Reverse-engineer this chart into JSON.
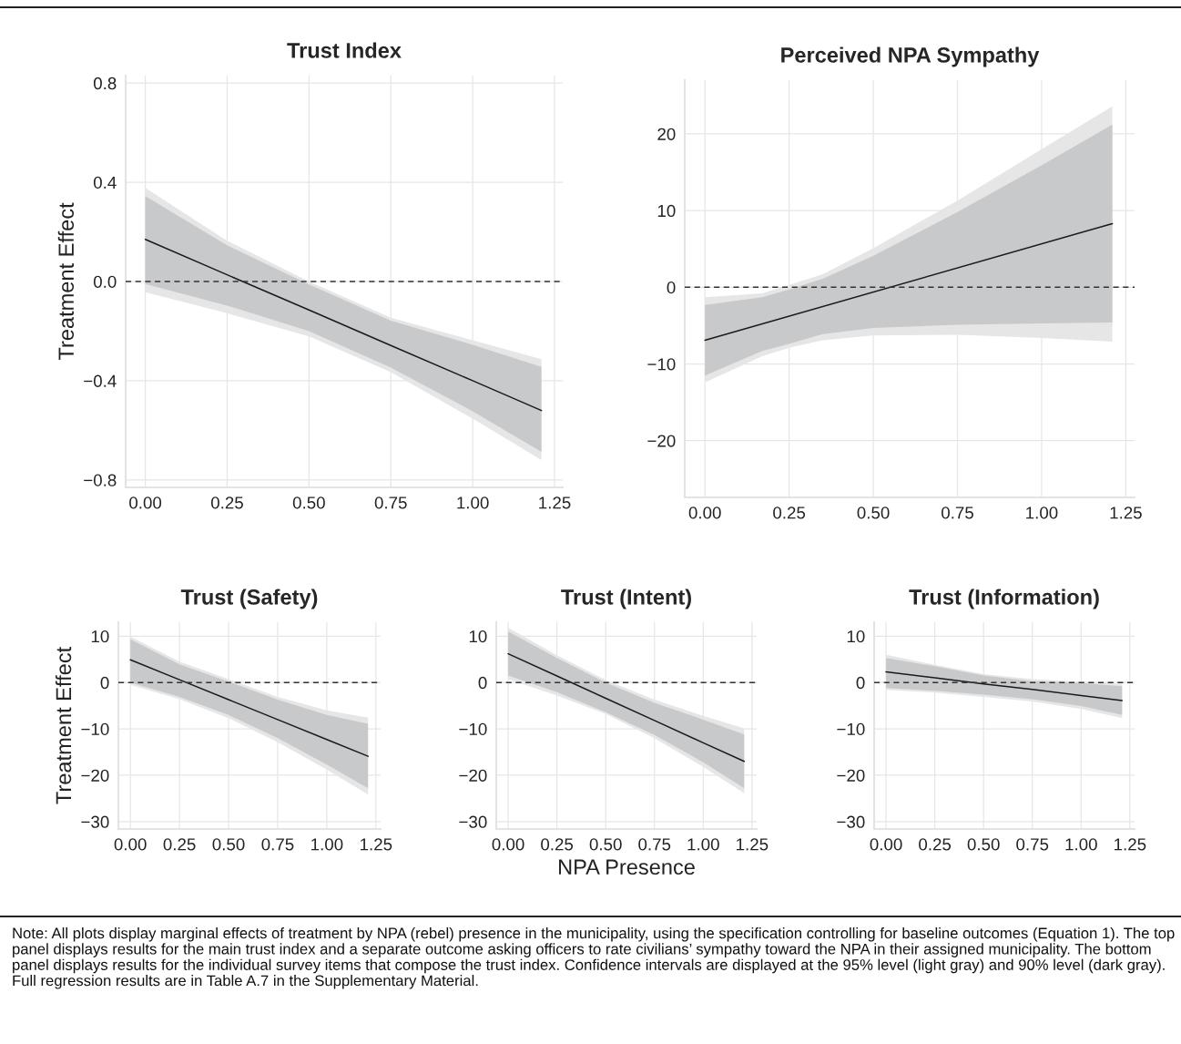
{
  "chart_data": [
    {
      "type": "line",
      "title": "Trust Index",
      "ylabel": "Treatment Effect",
      "x": [
        0,
        0.25,
        0.5,
        0.75,
        1.0,
        1.21
      ],
      "xlim": [
        -0.06,
        1.275
      ],
      "ylim": [
        -0.83,
        0.83
      ],
      "xticks": [
        {
          "value": 0,
          "label": "0.00"
        },
        0.25,
        {
          "value": 0.5,
          "label": "0.50"
        },
        0.75,
        {
          "value": 1,
          "label": "1.00"
        },
        1.25
      ],
      "yticks": [
        {
          "value": -0.8,
          "label": "−0.8"
        },
        {
          "value": -0.4,
          "label": "−0.4"
        },
        {
          "value": 0,
          "label": "0.0"
        },
        0.4,
        0.8
      ],
      "grid": true,
      "ref_lines": [
        {
          "axis": "y",
          "value": 0,
          "line_style": "dashed",
          "color": "#333333"
        }
      ],
      "series": [
        {
          "color": "#e6e6e6",
          "values": [
            null,
            null,
            null,
            null,
            null,
            null
          ],
          "lower": [
            -0.043,
            -0.128,
            -0.221,
            -0.365,
            -0.553,
            -0.72
          ],
          "upper": [
            0.377,
            0.164,
            0.0,
            -0.146,
            -0.237,
            -0.313
          ]
        },
        {
          "color": "#c8c9cb",
          "values": [
            null,
            null,
            null,
            null,
            null,
            null
          ],
          "lower": [
            -0.01,
            -0.097,
            -0.2,
            -0.347,
            -0.523,
            -0.687
          ],
          "upper": [
            0.344,
            0.146,
            -0.012,
            -0.158,
            -0.255,
            -0.344
          ]
        },
        {
          "color": "#1a1a1a",
          "values": [
            0.17,
            0.027,
            -0.115,
            -0.258,
            -0.4,
            -0.52
          ]
        }
      ]
    },
    {
      "type": "line",
      "title": "Perceived NPA Sympathy",
      "x": [
        0,
        0.17,
        0.25,
        0.35,
        0.5,
        0.75,
        1.0,
        1.21
      ],
      "xlim": [
        -0.06,
        1.276
      ],
      "ylim": [
        -27.4,
        27
      ],
      "xticks": [
        {
          "value": 0,
          "label": "0.00"
        },
        0.25,
        {
          "value": 0.5,
          "label": "0.50"
        },
        0.75,
        {
          "value": 1,
          "label": "1.00"
        },
        1.25
      ],
      "yticks": [
        {
          "value": -20,
          "label": "−20"
        },
        {
          "value": -10,
          "label": "−10"
        },
        0,
        10,
        20
      ],
      "grid": true,
      "ref_lines": [
        {
          "axis": "y",
          "value": 0,
          "line_style": "dashed",
          "color": "#333333"
        }
      ],
      "series": [
        {
          "color": "#e6e6e6",
          "values": [
            null,
            null,
            null,
            null,
            null,
            null,
            null,
            null
          ],
          "lower": [
            -12.4,
            -9.0,
            -7.9,
            -6.9,
            -6.3,
            -6.2,
            -6.6,
            -7.1
          ],
          "upper": [
            -1.3,
            -0.8,
            0.3,
            1.7,
            5.1,
            11.3,
            18.0,
            23.6
          ]
        },
        {
          "color": "#c8c9cb",
          "values": [
            null,
            null,
            null,
            null,
            null,
            null,
            null,
            null
          ],
          "lower": [
            -11.5,
            -8.3,
            -7.4,
            -6.1,
            -5.3,
            -4.9,
            -4.7,
            -4.6
          ],
          "upper": [
            -2.3,
            -1.3,
            -0.3,
            1.1,
            4.1,
            9.8,
            15.9,
            21.2
          ]
        },
        {
          "color": "#1a1a1a",
          "x": [
            0,
            1.21
          ],
          "values": [
            -6.9,
            8.3
          ]
        }
      ]
    },
    {
      "type": "line",
      "title": "Trust (Safety)",
      "ylabel": "Treatment Effect",
      "x": [
        0,
        0.25,
        0.5,
        0.75,
        1.0,
        1.21
      ],
      "xlim": [
        -0.061,
        1.274
      ],
      "ylim": [
        -31.6,
        13
      ],
      "xticks": [
        {
          "value": 0,
          "label": "0.00"
        },
        0.25,
        {
          "value": 0.5,
          "label": "0.50"
        },
        0.75,
        {
          "value": 1,
          "label": "1.00"
        },
        1.25
      ],
      "yticks": [
        {
          "value": -30,
          "label": "−30"
        },
        {
          "value": -20,
          "label": "−20"
        },
        {
          "value": -10,
          "label": "−10"
        },
        0,
        10
      ],
      "grid": true,
      "ref_lines": [
        {
          "axis": "y",
          "value": 0,
          "line_style": "dashed",
          "color": "#333333"
        }
      ],
      "series": [
        {
          "color": "#e6e6e6",
          "values": [
            null,
            null,
            null,
            null,
            null,
            null
          ],
          "lower": [
            -0.5,
            -3.6,
            -7.7,
            -12.9,
            -18.8,
            -24.2
          ],
          "upper": [
            9.9,
            4.5,
            0.7,
            -3.1,
            -6.0,
            -7.6
          ]
        },
        {
          "color": "#c8c9cb",
          "values": [
            null,
            null,
            null,
            null,
            null,
            null
          ],
          "lower": [
            0,
            -3.1,
            -7.0,
            -12.0,
            -17.7,
            -22.8
          ],
          "upper": [
            9.3,
            3.9,
            0.2,
            -3.7,
            -7.0,
            -8.9
          ]
        },
        {
          "color": "#1a1a1a",
          "values": [
            4.9,
            0.6,
            -3.7,
            -8.0,
            -12.3,
            -15.9
          ]
        }
      ]
    },
    {
      "type": "line",
      "title": "Trust (Intent)",
      "xlabel": "NPA Presence",
      "x": [
        0,
        0.25,
        0.5,
        0.75,
        1.0,
        1.21
      ],
      "xlim": [
        -0.061,
        1.274
      ],
      "ylim": [
        -31.6,
        13
      ],
      "xticks": [
        {
          "value": 0,
          "label": "0.00"
        },
        0.25,
        {
          "value": 0.5,
          "label": "0.50"
        },
        0.75,
        {
          "value": 1,
          "label": "1.00"
        },
        1.25
      ],
      "yticks": [
        {
          "value": -30,
          "label": "−30"
        },
        {
          "value": -20,
          "label": "−20"
        },
        {
          "value": -10,
          "label": "−10"
        },
        0,
        10
      ],
      "grid": true,
      "ref_lines": [
        {
          "axis": "y",
          "value": 0,
          "line_style": "dashed",
          "color": "#333333"
        }
      ],
      "series": [
        {
          "color": "#e6e6e6",
          "values": [
            null,
            null,
            null,
            null,
            null,
            null
          ],
          "lower": [
            0.7,
            -2.8,
            -6.8,
            -12.0,
            -18.2,
            -23.9
          ],
          "upper": [
            11.8,
            5.9,
            0.5,
            -3.7,
            -7.2,
            -9.9
          ]
        },
        {
          "color": "#c8c9cb",
          "values": [
            null,
            null,
            null,
            null,
            null,
            null
          ],
          "lower": [
            1.5,
            -2.1,
            -6.4,
            -11.3,
            -17.2,
            -22.8
          ],
          "upper": [
            11.0,
            5.3,
            0,
            -4.4,
            -8.0,
            -11.2
          ]
        },
        {
          "color": "#1a1a1a",
          "values": [
            6.2,
            1.4,
            -3.4,
            -8.2,
            -13.0,
            -17.0
          ]
        }
      ]
    },
    {
      "type": "line",
      "title": "Trust (Information)",
      "x": [
        0,
        0.25,
        0.5,
        0.75,
        1.0,
        1.21
      ],
      "xlim": [
        -0.061,
        1.274
      ],
      "ylim": [
        -31.6,
        13
      ],
      "xticks": [
        {
          "value": 0,
          "label": "0.00"
        },
        0.25,
        {
          "value": 0.5,
          "label": "0.50"
        },
        0.75,
        {
          "value": 1,
          "label": "1.00"
        },
        1.25
      ],
      "yticks": [
        {
          "value": -30,
          "label": "−30"
        },
        {
          "value": -20,
          "label": "−20"
        },
        {
          "value": -10,
          "label": "−10"
        },
        0,
        10
      ],
      "grid": true,
      "ref_lines": [
        {
          "axis": "y",
          "value": 0,
          "line_style": "dashed",
          "color": "#333333"
        }
      ],
      "series": [
        {
          "color": "#e6e6e6",
          "values": [
            null,
            null,
            null,
            null,
            null,
            null
          ],
          "lower": [
            -1.6,
            -2.2,
            -3.1,
            -4.1,
            -5.7,
            -7.7
          ],
          "upper": [
            6.0,
            3.8,
            1.8,
            0.7,
            0.2,
            -0.3
          ]
        },
        {
          "color": "#c8c9cb",
          "values": [
            null,
            null,
            null,
            null,
            null,
            null
          ],
          "lower": [
            -1.2,
            -1.8,
            -2.6,
            -3.6,
            -5.1,
            -7.0
          ],
          "upper": [
            5.3,
            3.5,
            1.5,
            0.3,
            -0.1,
            -0.8
          ]
        },
        {
          "color": "#1a1a1a",
          "values": [
            2.3,
            1.0,
            -0.3,
            -1.5,
            -2.8,
            -3.9
          ]
        }
      ],
      "annotations": [
        "Note: All plots display marginal effects of treatment by NPA (rebel) presence in the municipality, using the specification controlling for baseline outcomes (Equation 1). The top panel displays results for the main trust index and a separate outcome asking officers to rate civilians’ sympathy toward the NPA in their assigned municipality. The bottom panel displays results for the individual survey items that compose the trust index. Confidence intervals are displayed at the 95% level (light gray) and 90% level (dark gray). Full regression results are in Table A.7 in the Supplementary Material."
      ]
    }
  ]
}
